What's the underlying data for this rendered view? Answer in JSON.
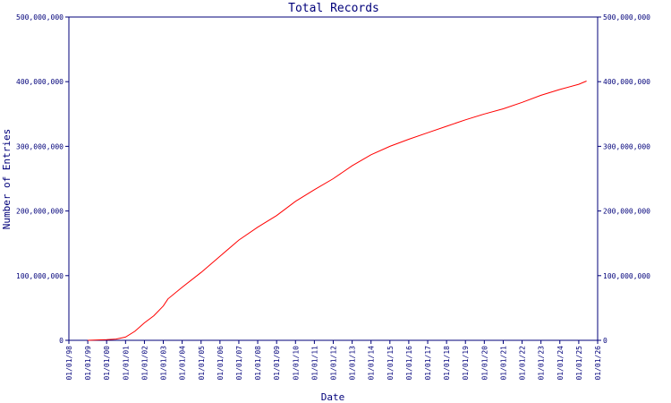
{
  "chart_data": {
    "type": "line",
    "title": "Total Records",
    "xlabel": "Date",
    "ylabel": "Number of Entries",
    "ylim": [
      0,
      500000000
    ],
    "xlim": [
      "1998-01-01",
      "2026-01-01"
    ],
    "y_ticks": [
      0,
      100000000,
      200000000,
      300000000,
      400000000,
      500000000
    ],
    "y_tick_labels": [
      "0",
      "100,000,000",
      "200,000,000",
      "300,000,000",
      "400,000,000",
      "500,000,000"
    ],
    "x_tick_labels": [
      "01/01/98",
      "01/01/99",
      "01/01/00",
      "01/01/01",
      "01/01/02",
      "01/01/03",
      "01/01/04",
      "01/01/05",
      "01/01/06",
      "01/01/07",
      "01/01/08",
      "01/01/09",
      "01/01/10",
      "01/01/11",
      "01/01/12",
      "01/01/13",
      "01/01/14",
      "01/01/15",
      "01/01/16",
      "01/01/17",
      "01/01/18",
      "01/01/19",
      "01/01/20",
      "01/01/21",
      "01/01/22",
      "01/01/23",
      "01/01/24",
      "01/01/25",
      "01/01/26"
    ],
    "right_axis": true,
    "grid": false,
    "colors": {
      "axis": "#00007a",
      "line": "#ff0000"
    },
    "series": [
      {
        "x": [
          "1999-01-01",
          "2000-01-01",
          "2000-07-01",
          "2001-01-01",
          "2001-07-01",
          "2002-01-01",
          "2002-07-01",
          "2003-01-01",
          "2003-04-01",
          "2004-01-01",
          "2005-01-01",
          "2006-01-01",
          "2007-01-01",
          "2008-01-01",
          "2009-01-01",
          "2010-01-01",
          "2011-01-01",
          "2012-01-01",
          "2013-01-01",
          "2014-01-01",
          "2015-01-01",
          "2016-01-01",
          "2017-01-01",
          "2018-01-01",
          "2019-01-01",
          "2020-01-01",
          "2021-01-01",
          "2022-01-01",
          "2023-01-01",
          "2024-01-01",
          "2025-01-01",
          "2025-06-01"
        ],
        "y": [
          0,
          1000000,
          2000000,
          5000000,
          14000000,
          27000000,
          38000000,
          53000000,
          64000000,
          82000000,
          105000000,
          130000000,
          155000000,
          175000000,
          193000000,
          215000000,
          233000000,
          250000000,
          270000000,
          287000000,
          300000000,
          311000000,
          321000000,
          331000000,
          341000000,
          350000000,
          358000000,
          368000000,
          379000000,
          388000000,
          396000000,
          401000000
        ]
      }
    ]
  }
}
